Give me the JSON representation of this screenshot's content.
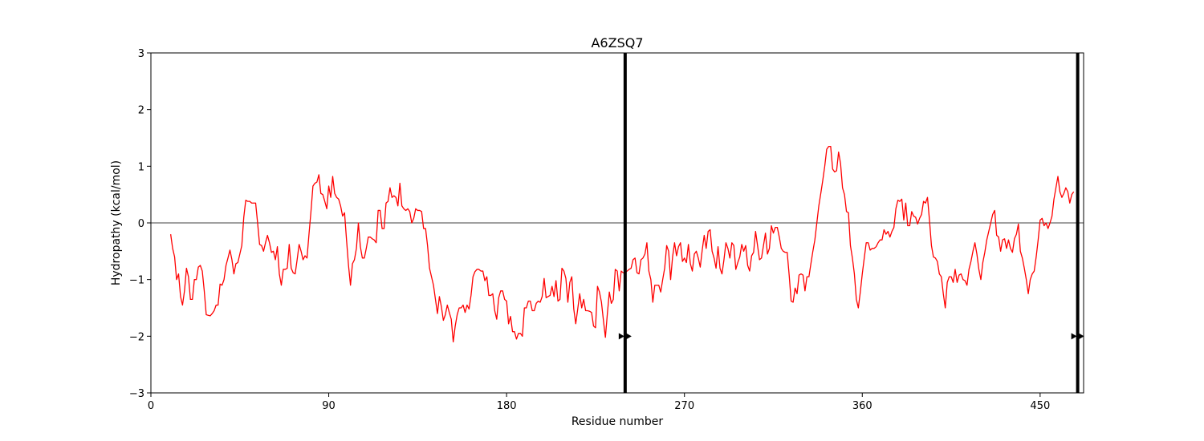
{
  "chart_data": {
    "type": "line",
    "title": "A6ZSQ7",
    "xlabel": "Residue number",
    "ylabel": "Hydropathy (kcal/mol)",
    "xlim": [
      0,
      472
    ],
    "ylim": [
      -3,
      3
    ],
    "x_ticks": [
      0,
      90,
      180,
      270,
      360,
      450
    ],
    "y_ticks": [
      -3,
      -2,
      -1,
      0,
      1,
      2,
      3
    ],
    "y_tick_labels": [
      "−3",
      "−2",
      "−1",
      "0",
      "1",
      "2",
      "3"
    ],
    "grid": false,
    "legend": "none",
    "colors": {
      "series": "#ff0000",
      "axis": "#000000",
      "marker": "#000000"
    },
    "reference_line": {
      "y": 0
    },
    "vertical_markers": [
      {
        "x": 240,
        "arrow_y": -2
      },
      {
        "x": 469,
        "arrow_y": -2
      }
    ],
    "series": [
      {
        "x_start": 10,
        "x_step": 1,
        "values": [
          -0.2,
          -0.45,
          -0.6,
          -1.0,
          -0.9,
          -1.3,
          -1.45,
          -1.2,
          -0.8,
          -0.95,
          -1.35,
          -1.35,
          -1.0,
          -1.0,
          -0.78,
          -0.75,
          -0.85,
          -1.2,
          -1.62,
          -1.63,
          -1.64,
          -1.6,
          -1.55,
          -1.45,
          -1.45,
          -1.08,
          -1.1,
          -1.0,
          -0.75,
          -0.62,
          -0.48,
          -0.65,
          -0.9,
          -0.72,
          -0.7,
          -0.55,
          -0.4,
          0.1,
          0.4,
          0.38,
          0.38,
          0.35,
          0.35,
          0.35,
          0.0,
          -0.38,
          -0.4,
          -0.5,
          -0.35,
          -0.22,
          -0.35,
          -0.52,
          -0.5,
          -0.65,
          -0.42,
          -0.9,
          -1.1,
          -0.82,
          -0.82,
          -0.8,
          -0.38,
          -0.8,
          -0.88,
          -0.9,
          -0.65,
          -0.38,
          -0.5,
          -0.65,
          -0.58,
          -0.62,
          -0.2,
          0.2,
          0.65,
          0.7,
          0.72,
          0.85,
          0.52,
          0.5,
          0.38,
          0.25,
          0.65,
          0.45,
          0.82,
          0.52,
          0.45,
          0.42,
          0.3,
          0.12,
          0.18,
          -0.3,
          -0.75,
          -1.1,
          -0.72,
          -0.65,
          -0.45,
          0.0,
          -0.42,
          -0.62,
          -0.62,
          -0.45,
          -0.25,
          -0.25,
          -0.28,
          -0.3,
          -0.35,
          0.22,
          0.22,
          -0.1,
          -0.1,
          0.35,
          0.38,
          0.62,
          0.45,
          0.48,
          0.45,
          0.3,
          0.7,
          0.3,
          0.25,
          0.22,
          0.25,
          0.2,
          0.0,
          0.08,
          0.25,
          0.22,
          0.22,
          0.2,
          -0.1,
          -0.1,
          -0.4,
          -0.8,
          -0.95,
          -1.1,
          -1.35,
          -1.6,
          -1.3,
          -1.48,
          -1.72,
          -1.62,
          -1.45,
          -1.58,
          -1.7,
          -2.1,
          -1.82,
          -1.62,
          -1.5,
          -1.5,
          -1.45,
          -1.58,
          -1.45,
          -1.52,
          -1.28,
          -0.95,
          -0.86,
          -0.82,
          -0.82,
          -0.85,
          -0.85,
          -1.02,
          -0.95,
          -1.28,
          -1.28,
          -1.25,
          -1.55,
          -1.7,
          -1.32,
          -1.2,
          -1.2,
          -1.35,
          -1.38,
          -1.78,
          -1.65,
          -1.92,
          -1.92,
          -2.05,
          -1.95,
          -1.95,
          -2.0,
          -1.5,
          -1.5,
          -1.38,
          -1.38,
          -1.55,
          -1.55,
          -1.42,
          -1.38,
          -1.4,
          -1.3,
          -0.98,
          -1.32,
          -1.3,
          -1.28,
          -1.12,
          -1.3,
          -1.02,
          -1.38,
          -1.35,
          -0.8,
          -0.85,
          -0.98,
          -1.4,
          -1.05,
          -0.95,
          -1.52,
          -1.78,
          -1.52,
          -1.25,
          -1.5,
          -1.35,
          -1.55,
          -1.55,
          -1.56,
          -1.58,
          -1.82,
          -1.85,
          -1.12,
          -1.22,
          -1.4,
          -1.72,
          -2.02,
          -1.6,
          -1.22,
          -1.42,
          -1.35,
          -0.82,
          -0.85,
          -1.2,
          -0.85,
          -0.88,
          -0.88,
          -0.85,
          -0.82,
          -0.8,
          -0.65,
          -0.62,
          -0.88,
          -0.9,
          -0.65,
          -0.62,
          -0.55,
          -0.35,
          -0.85,
          -1.0,
          -1.4,
          -1.1,
          -1.1,
          -1.1,
          -1.22,
          -1.0,
          -0.8,
          -0.4,
          -0.5,
          -1.0,
          -0.6,
          -0.35,
          -0.58,
          -0.42,
          -0.35,
          -0.68,
          -0.62,
          -0.7,
          -0.38,
          -0.72,
          -0.85,
          -0.55,
          -0.5,
          -0.62,
          -0.78,
          -0.48,
          -0.22,
          -0.45,
          -0.15,
          -0.12,
          -0.5,
          -0.62,
          -0.8,
          -0.42,
          -0.8,
          -0.9,
          -0.65,
          -0.35,
          -0.45,
          -0.62,
          -0.35,
          -0.4,
          -0.82,
          -0.7,
          -0.6,
          -0.38,
          -0.5,
          -0.4,
          -0.75,
          -0.85,
          -0.58,
          -0.52,
          -0.15,
          -0.4,
          -0.65,
          -0.62,
          -0.4,
          -0.18,
          -0.55,
          -0.45,
          -0.05,
          -0.18,
          -0.08,
          -0.08,
          -0.25,
          -0.45,
          -0.5,
          -0.52,
          -0.52,
          -0.92,
          -1.38,
          -1.4,
          -1.15,
          -1.25,
          -0.92,
          -0.9,
          -0.92,
          -1.2,
          -0.95,
          -0.95,
          -0.72,
          -0.5,
          -0.3,
          0.0,
          0.3,
          0.52,
          0.75,
          1.0,
          1.3,
          1.35,
          1.35,
          0.95,
          0.9,
          0.92,
          1.25,
          1.05,
          0.62,
          0.5,
          0.2,
          0.18,
          -0.4,
          -0.62,
          -0.9,
          -1.35,
          -1.5,
          -1.22,
          -0.9,
          -0.62,
          -0.35,
          -0.35,
          -0.48,
          -0.45,
          -0.45,
          -0.42,
          -0.35,
          -0.3,
          -0.3,
          -0.12,
          -0.2,
          -0.15,
          -0.25,
          -0.15,
          -0.08,
          0.25,
          0.4,
          0.38,
          0.42,
          0.05,
          0.35,
          -0.05,
          -0.05,
          0.2,
          0.12,
          0.1,
          -0.02,
          0.08,
          0.15,
          0.38,
          0.35,
          0.45,
          0.05,
          -0.4,
          -0.6,
          -0.62,
          -0.68,
          -0.9,
          -0.95,
          -1.25,
          -1.5,
          -1.05,
          -0.95,
          -0.95,
          -1.05,
          -0.82,
          -1.05,
          -0.92,
          -0.9,
          -1.0,
          -1.02,
          -1.1,
          -0.82,
          -0.68,
          -0.5,
          -0.35,
          -0.55,
          -0.82,
          -1.0,
          -0.7,
          -0.52,
          -0.3,
          -0.15,
          0.0,
          0.15,
          0.22,
          -0.22,
          -0.25,
          -0.5,
          -0.3,
          -0.28,
          -0.45,
          -0.3,
          -0.45,
          -0.52,
          -0.28,
          -0.2,
          -0.02,
          -0.5,
          -0.62,
          -0.8,
          -1.0,
          -1.25,
          -1.0,
          -0.9,
          -0.85,
          -0.6,
          -0.3,
          0.05,
          0.08,
          -0.05,
          0.0,
          -0.1,
          0.0,
          0.12,
          0.42,
          0.62,
          0.82,
          0.55,
          0.45,
          0.52,
          0.62,
          0.55,
          0.35,
          0.5,
          0.55
        ]
      }
    ]
  }
}
